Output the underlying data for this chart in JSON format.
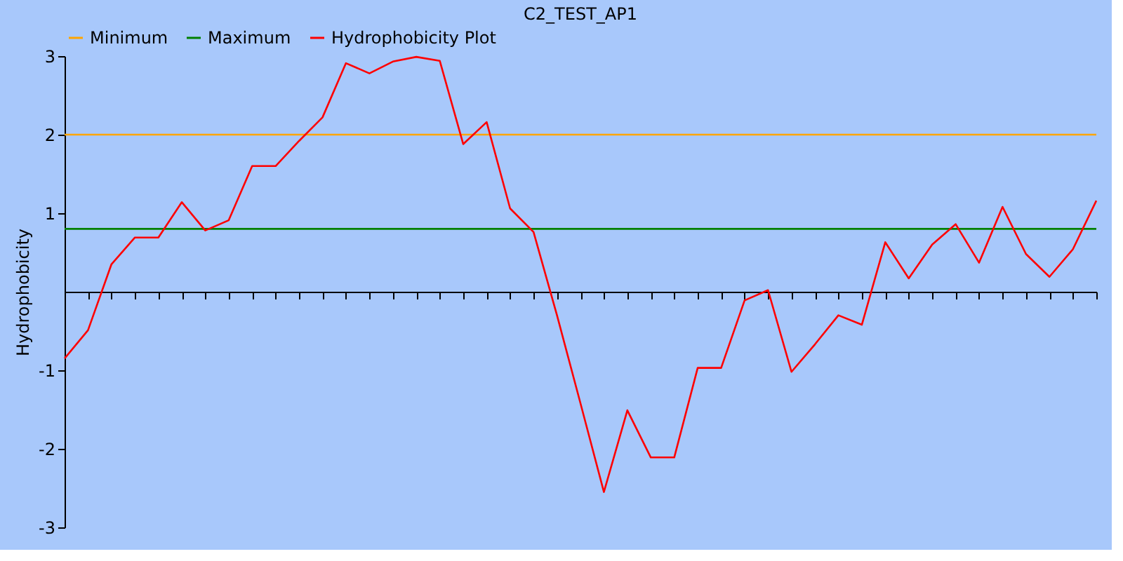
{
  "chart_data": {
    "type": "line",
    "title": "C2_TEST_AP1",
    "ylabel": "Hydrophobicity",
    "categories": [
      null,
      null,
      null,
      null,
      null,
      null,
      null,
      null,
      null,
      null,
      null,
      null,
      null,
      null,
      null,
      null,
      null,
      null,
      null,
      null,
      null,
      null,
      null,
      null,
      null,
      null,
      null,
      null,
      null,
      null,
      null,
      null,
      null,
      null,
      null,
      null,
      null,
      null,
      null,
      null,
      null,
      null,
      null,
      null,
      null
    ],
    "series": [
      {
        "name": "Minimum",
        "color": "#ffa500",
        "values": [
          2,
          2,
          2,
          2,
          2,
          2,
          2,
          2,
          2,
          2,
          2,
          2,
          2,
          2,
          2,
          2,
          2,
          2,
          2,
          2,
          2,
          2,
          2,
          2,
          2,
          2,
          2,
          2,
          2,
          2,
          2,
          2,
          2,
          2,
          2,
          2,
          2,
          2,
          2,
          2,
          2,
          2,
          2,
          2,
          2
        ]
      },
      {
        "name": "Maximum",
        "color": "#008000",
        "values": [
          0.8,
          0.8,
          0.8,
          0.8,
          0.8,
          0.8,
          0.8,
          0.8,
          0.8,
          0.8,
          0.8,
          0.8,
          0.8,
          0.8,
          0.8,
          0.8,
          0.8,
          0.8,
          0.8,
          0.8,
          0.8,
          0.8,
          0.8,
          0.8,
          0.8,
          0.8,
          0.8,
          0.8,
          0.8,
          0.8,
          0.8,
          0.8,
          0.8,
          0.8,
          0.8,
          0.8,
          0.8,
          0.8,
          0.8,
          0.8,
          0.8,
          0.8,
          0.8,
          0.8,
          0.8
        ]
      },
      {
        "name": "Hydrophobicity Plot",
        "color": "#ff0000",
        "values": [
          -0.85,
          -0.49,
          0.35,
          0.69,
          0.69,
          1.14,
          0.78,
          0.91,
          1.6,
          1.6,
          1.92,
          2.22,
          2.91,
          2.78,
          2.93,
          2.99,
          2.94,
          1.88,
          2.16,
          1.06,
          0.76,
          -0.3,
          -1.42,
          -2.55,
          -1.51,
          -2.11,
          -2.11,
          -0.97,
          -0.97,
          -0.11,
          0.02,
          -1.02,
          -0.67,
          -0.3,
          -0.42,
          0.63,
          0.17,
          0.6,
          0.86,
          0.37,
          1.08,
          0.48,
          0.19,
          0.54,
          1.16
        ]
      }
    ],
    "ylim": [
      -3,
      3
    ],
    "yticks": [
      -3,
      -2,
      -1,
      1,
      2,
      3
    ],
    "tick_labels": "y",
    "grid": false,
    "legend": "top"
  }
}
